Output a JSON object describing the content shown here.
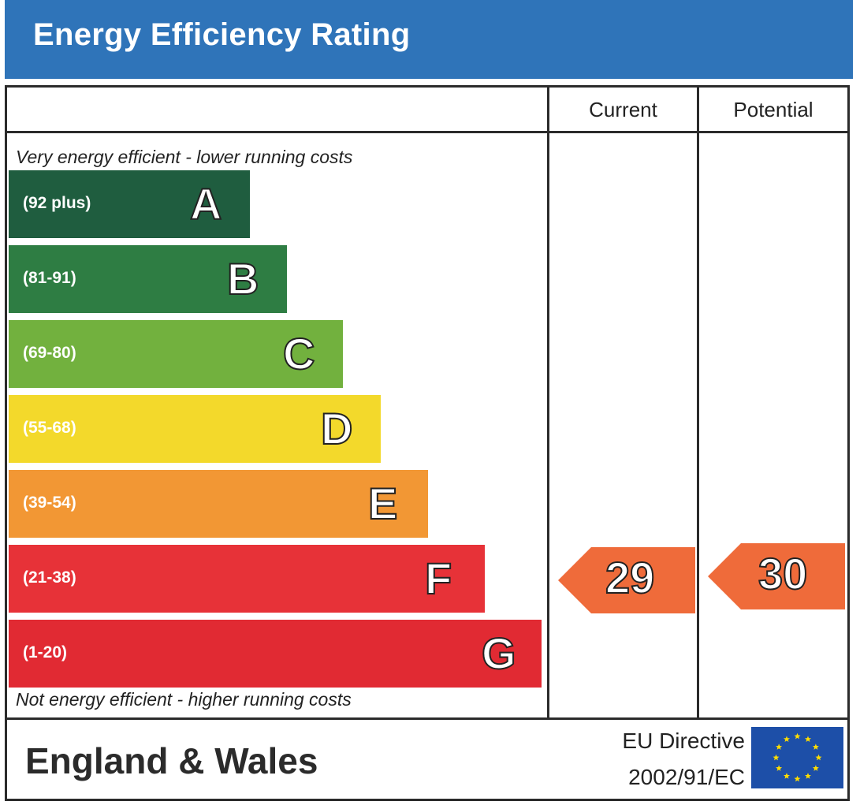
{
  "header": {
    "title": "Energy Efficiency Rating"
  },
  "columns": {
    "current": "Current",
    "potential": "Potential"
  },
  "notes": {
    "top": "Very energy efficient - lower running costs",
    "bottom": "Not energy efficient - higher running costs"
  },
  "chart_data": {
    "type": "bar",
    "title": "Energy Efficiency Rating",
    "categories": [
      "A",
      "B",
      "C",
      "D",
      "E",
      "F",
      "G"
    ],
    "ranges": [
      "(92 plus)",
      "(81-91)",
      "(69-80)",
      "(55-68)",
      "(39-54)",
      "(21-38)",
      "(1-20)"
    ],
    "colors": [
      "#1f5d3f",
      "#2e7d43",
      "#72b13e",
      "#f3d92b",
      "#f29734",
      "#e73238",
      "#e12a33"
    ],
    "current_rating": {
      "value": 29,
      "band": "F"
    },
    "potential_rating": {
      "value": 30,
      "band": "F"
    },
    "rating_arrow_color": "#ef6b3a"
  },
  "footer": {
    "region": "England & Wales",
    "directive_line1": "EU Directive",
    "directive_line2": "2002/91/EC"
  },
  "icons": {
    "flag": "eu-flag-icon",
    "flag_color": "#1d4fa8",
    "star_color": "#ffdd00"
  }
}
